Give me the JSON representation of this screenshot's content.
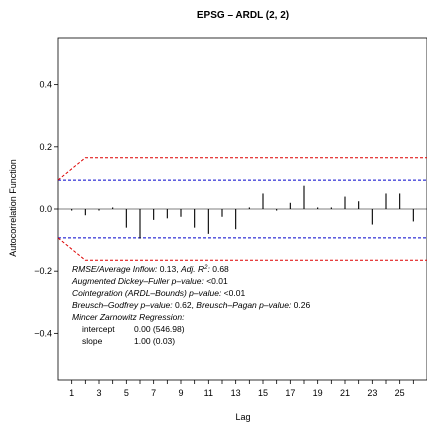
{
  "chart_data": {
    "type": "bar",
    "title": "EPSG – ARDL (2, 2)",
    "xlabel": "Lag",
    "ylabel": "Autocorrelation Function",
    "xlim": [
      0,
      27
    ],
    "ylim": [
      -0.55,
      0.55
    ],
    "x_ticks": [
      1,
      3,
      5,
      7,
      9,
      11,
      13,
      15,
      17,
      19,
      21,
      23,
      25
    ],
    "y_ticks": [
      -0.4,
      -0.2,
      0.0,
      0.2,
      0.4
    ],
    "y_tick_labels": [
      "−0.4",
      "−0.2",
      "0.0",
      "0.2",
      "0.4"
    ],
    "lags": [
      1,
      2,
      3,
      4,
      5,
      6,
      7,
      8,
      9,
      10,
      11,
      12,
      13,
      14,
      15,
      16,
      17,
      18,
      19,
      20,
      21,
      22,
      23,
      24,
      25,
      26
    ],
    "values": [
      -0.005,
      -0.02,
      -0.005,
      0.005,
      -0.06,
      -0.095,
      -0.035,
      -0.03,
      -0.025,
      -0.06,
      -0.08,
      -0.025,
      -0.065,
      0.005,
      0.05,
      -0.005,
      0.02,
      0.075,
      0.005,
      0.005,
      0.04,
      0.025,
      -0.05,
      0.05,
      0.05,
      -0.04
    ],
    "ci_blue": 0.093,
    "ci_red": {
      "x": [
        0,
        2,
        27
      ],
      "y": [
        0.093,
        0.165,
        0.165
      ]
    },
    "colors": {
      "blue": "#0000cc",
      "red": "#dd0000",
      "bars": "#000000"
    },
    "grid": false,
    "annotations": [
      {
        "type": "rich",
        "parts": [
          {
            "t": "RMSE/Average Inflow:",
            "s": "i"
          },
          {
            "t": " 0.13, ",
            "s": "n"
          },
          {
            "t": "Adj. R",
            "s": "i"
          },
          {
            "t": "2",
            "s": "sup"
          },
          {
            "t": ":",
            "s": "i"
          },
          {
            "t": " 0.68",
            "s": "n"
          }
        ]
      },
      {
        "type": "rich",
        "parts": [
          {
            "t": "Augmented Dickey–Fuller p–value:",
            "s": "i"
          },
          {
            "t": " <0.01",
            "s": "n"
          }
        ]
      },
      {
        "type": "rich",
        "parts": [
          {
            "t": "Cointegration (ARDL–Bounds) p–value:",
            "s": "i"
          },
          {
            "t": " <0.01",
            "s": "n"
          }
        ]
      },
      {
        "type": "rich",
        "parts": [
          {
            "t": "Breusch–Godfrey p–value:",
            "s": "i"
          },
          {
            "t": " 0.62, ",
            "s": "n"
          },
          {
            "t": "Breusch–Pagan p–value:",
            "s": "i"
          },
          {
            "t": " 0.26",
            "s": "n"
          }
        ]
      },
      {
        "type": "rich",
        "parts": [
          {
            "t": "Mincer Zarnowitz Regression:",
            "s": "i"
          }
        ]
      }
    ],
    "regression": [
      {
        "label": "intercept",
        "value": "0.00 (546.98)"
      },
      {
        "label": "slope",
        "value": "1.00 (0.03)"
      }
    ]
  }
}
